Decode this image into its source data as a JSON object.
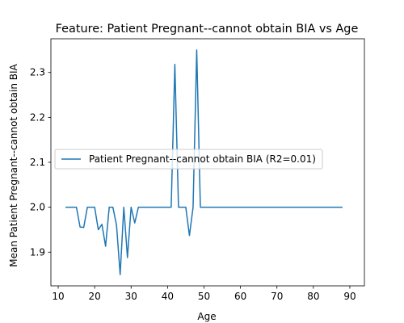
{
  "chart_data": {
    "type": "line",
    "title": "Feature: Patient Pregnant--cannot obtain BIA vs Age",
    "xlabel": "Age",
    "ylabel": "Mean Patient Pregnant--cannot obtain BIA",
    "xlim": [
      8,
      94
    ],
    "ylim": [
      1.825,
      2.375
    ],
    "xticks": [
      10,
      20,
      30,
      40,
      50,
      60,
      70,
      80,
      90
    ],
    "xtick_labels": [
      "10",
      "20",
      "30",
      "40",
      "50",
      "60",
      "70",
      "80",
      "90"
    ],
    "yticks": [
      1.9,
      2.0,
      2.1,
      2.2,
      2.3
    ],
    "ytick_labels": [
      "1.9",
      "2.0",
      "2.1",
      "2.2",
      "2.3"
    ],
    "grid": false,
    "legend_position": "center-left",
    "series": [
      {
        "name": "Patient Pregnant--cannot obtain BIA (R2=0.01)",
        "color": "#1f77b4",
        "x": [
          12,
          13,
          14,
          15,
          16,
          17,
          18,
          19,
          20,
          21,
          22,
          23,
          24,
          25,
          26,
          27,
          28,
          29,
          30,
          31,
          32,
          33,
          34,
          35,
          36,
          37,
          38,
          39,
          40,
          41,
          42,
          43,
          44,
          45,
          46,
          47,
          48,
          49,
          50,
          55,
          60,
          65,
          70,
          75,
          80,
          85,
          88
        ],
        "y": [
          2.0,
          2.0,
          2.0,
          2.0,
          1.956,
          1.955,
          2.0,
          2.0,
          2.0,
          1.95,
          1.962,
          1.913,
          2.0,
          2.0,
          1.96,
          1.85,
          2.0,
          1.888,
          2.0,
          1.965,
          2.0,
          2.0,
          2.0,
          2.0,
          2.0,
          2.0,
          2.0,
          2.0,
          2.0,
          2.0,
          2.318,
          2.0,
          2.0,
          2.0,
          1.937,
          2.0,
          2.35,
          2.0,
          2.0,
          2.0,
          2.0,
          2.0,
          2.0,
          2.0,
          2.0,
          2.0,
          2.0
        ]
      }
    ]
  }
}
